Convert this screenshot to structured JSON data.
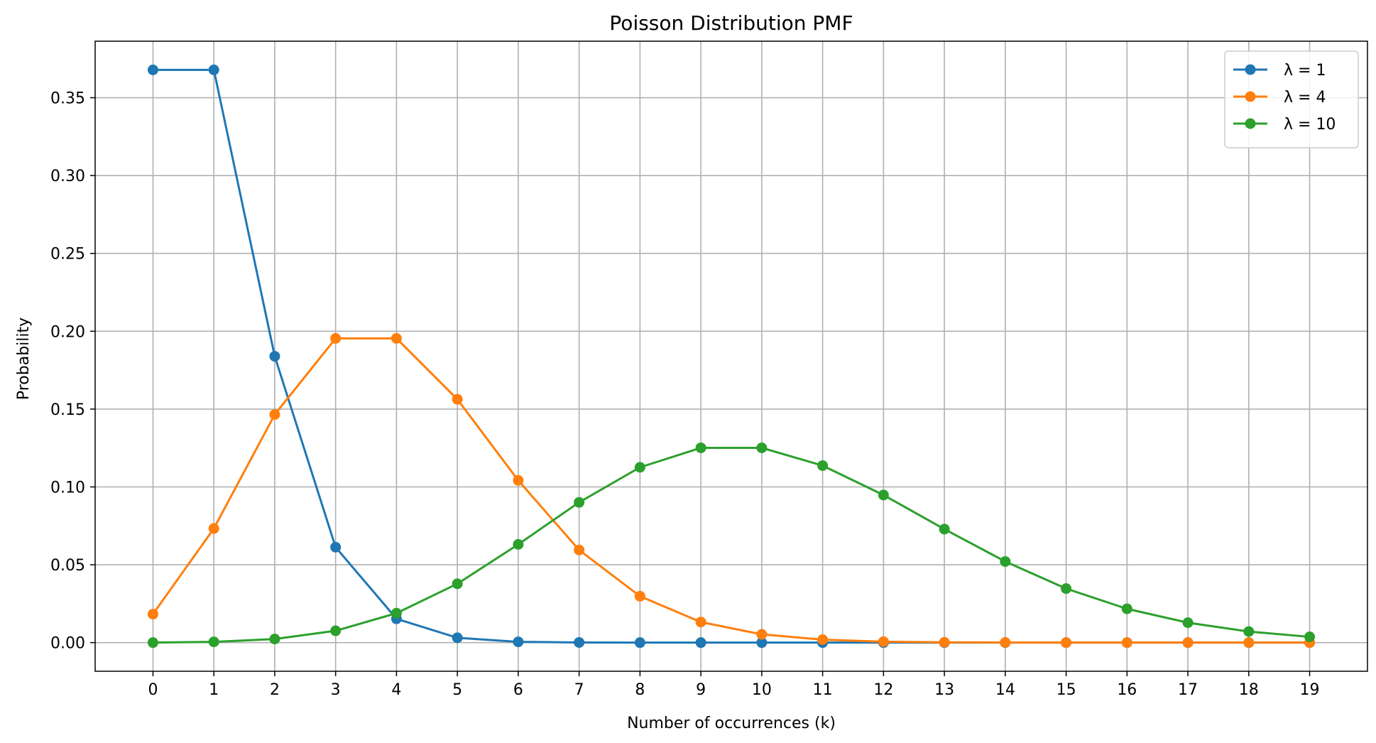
{
  "chart_data": {
    "type": "line",
    "title": "Poisson Distribution PMF",
    "xlabel": "Number of occurrences (k)",
    "ylabel": "Probability",
    "x": [
      0,
      1,
      2,
      3,
      4,
      5,
      6,
      7,
      8,
      9,
      10,
      11,
      12,
      13,
      14,
      15,
      16,
      17,
      18,
      19
    ],
    "xticks": [
      "0",
      "1",
      "2",
      "3",
      "4",
      "5",
      "6",
      "7",
      "8",
      "9",
      "10",
      "11",
      "12",
      "13",
      "14",
      "15",
      "16",
      "17",
      "18",
      "19"
    ],
    "yticks": [
      "0.00",
      "0.05",
      "0.10",
      "0.15",
      "0.20",
      "0.25",
      "0.30",
      "0.35"
    ],
    "ytick_values": [
      0,
      0.05,
      0.1,
      0.15,
      0.2,
      0.25,
      0.3,
      0.35
    ],
    "xlim": [
      -0.95,
      19.95
    ],
    "ylim": [
      -0.0184,
      0.3863
    ],
    "grid": true,
    "legend_position": "top-right",
    "series": [
      {
        "name": "λ = 1",
        "color": "#1f77b4",
        "marker": "circle",
        "values": [
          0.3679,
          0.3679,
          0.1839,
          0.0613,
          0.0153,
          0.0031,
          0.0005,
          0.0001,
          0.0,
          0.0,
          0.0,
          0.0,
          0.0,
          0.0,
          0.0,
          0.0,
          0.0,
          0.0,
          0.0,
          0.0
        ]
      },
      {
        "name": "λ = 4",
        "color": "#ff7f0e",
        "marker": "circle",
        "values": [
          0.0183,
          0.0733,
          0.1465,
          0.1954,
          0.1954,
          0.1563,
          0.1042,
          0.0595,
          0.0298,
          0.0132,
          0.0053,
          0.0019,
          0.0006,
          0.0002,
          0.0001,
          0.0,
          0.0,
          0.0,
          0.0,
          0.0
        ]
      },
      {
        "name": "λ = 10",
        "color": "#2ca02c",
        "marker": "circle",
        "values": [
          0.0,
          0.0005,
          0.0023,
          0.0076,
          0.0189,
          0.0378,
          0.0631,
          0.0901,
          0.1126,
          0.1251,
          0.1251,
          0.1137,
          0.0948,
          0.0729,
          0.0521,
          0.0347,
          0.0217,
          0.0128,
          0.0071,
          0.0037
        ]
      }
    ]
  }
}
